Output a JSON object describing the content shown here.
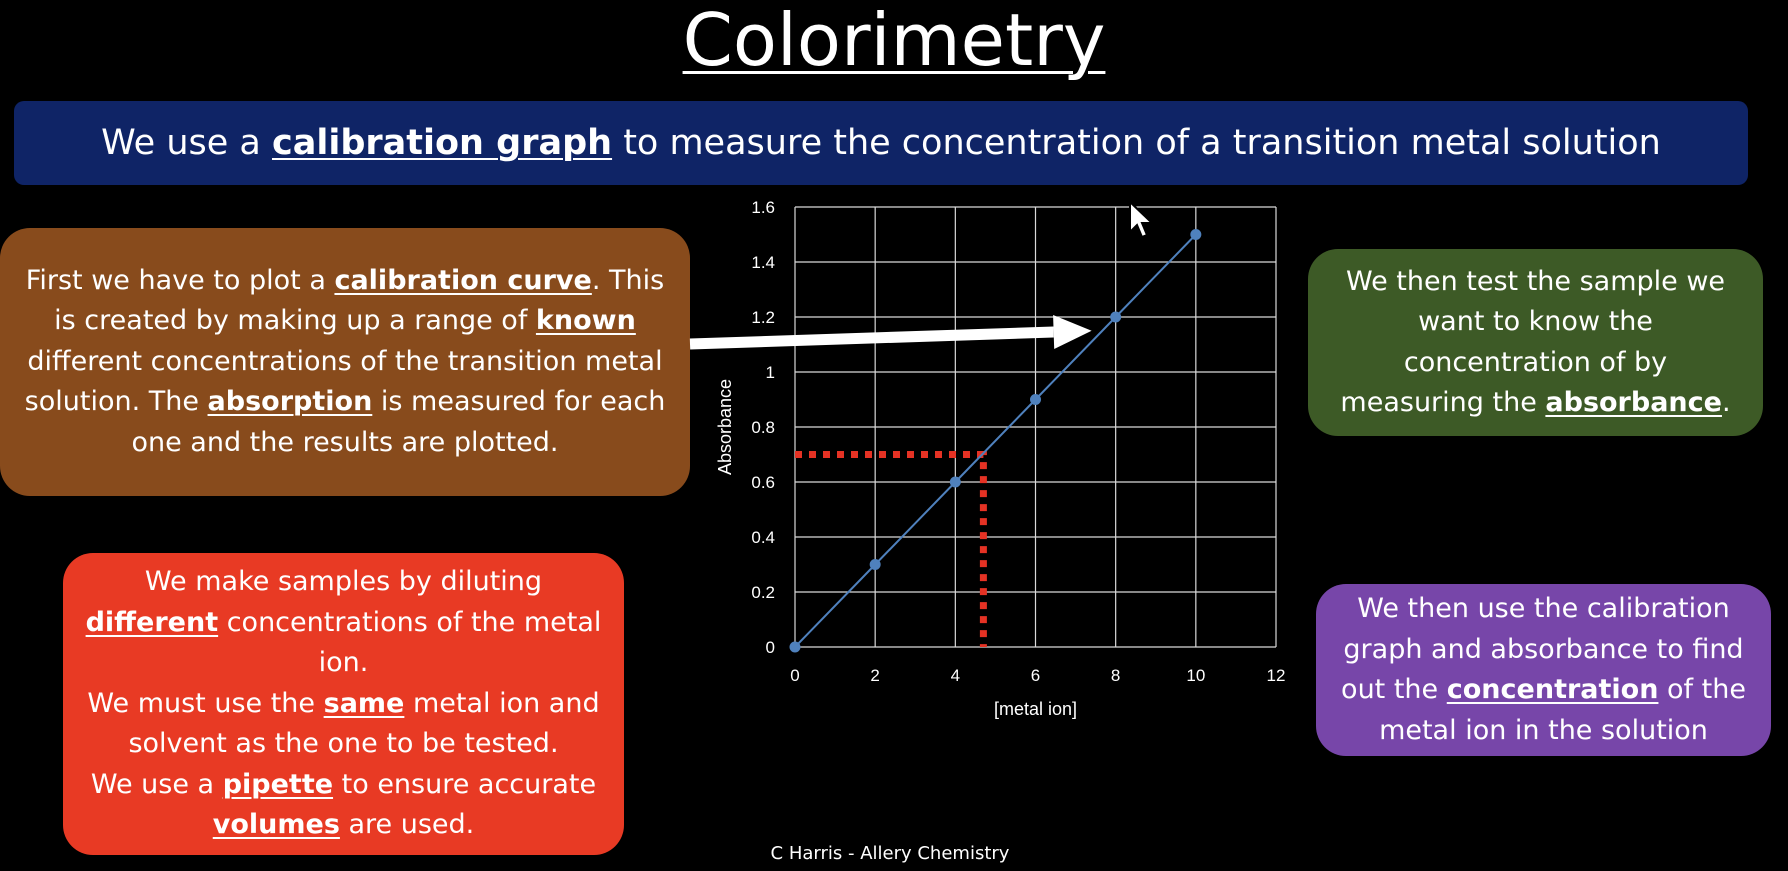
{
  "title": "Colorimetry",
  "banner": {
    "prefix": "We use a ",
    "term": "calibration graph",
    "suffix": " to measure the concentration of a transition metal solution"
  },
  "box_plot": {
    "t1": "First we have to plot a ",
    "k1": "calibration curve",
    "t2": ". This is created by making up a range of ",
    "k2": "known",
    "t3": " different concentrations of the transition metal solution. The ",
    "k3": "absorption",
    "t4": " is measured for each one and the results are plotted."
  },
  "box_samples": {
    "t1": "We make samples by diluting ",
    "k1": "different",
    "t2": " concentrations of the metal ion.",
    "t3": "We must use the ",
    "k2": "same",
    "t4": " metal ion and solvent as the one to be tested.",
    "t5": "We use a ",
    "k3": "pipette",
    "t6": " to ensure accurate ",
    "k4": "volumes",
    "t7": " are used."
  },
  "box_test": {
    "t1": "We then test the sample we want to know the concentration of by measuring the ",
    "k1": "absorbance",
    "t2": "."
  },
  "box_use": {
    "t1": "We then use the calibration graph and absorbance to find out the ",
    "k1": "concentration",
    "t2": " of the metal ion in the solution"
  },
  "credit": "C Harris - Allery Chemistry",
  "colors": {
    "banner": "#0f2466",
    "brown_box": "#884b1c",
    "red_box": "#e83a24",
    "green_box": "#3d5a26",
    "purple_box": "#7746a9",
    "series_line": "#4f81bd",
    "readout_line": "#e53224"
  },
  "chart_data": {
    "type": "scatter",
    "title": "",
    "xlabel": "[metal ion]",
    "ylabel": "Absorbance",
    "xlim": [
      0,
      12
    ],
    "ylim": [
      0,
      1.6
    ],
    "xticks": [
      0,
      2,
      4,
      6,
      8,
      10,
      12
    ],
    "yticks": [
      0,
      0.2,
      0.4,
      0.6,
      0.8,
      1,
      1.2,
      1.4,
      1.6
    ],
    "ytick_labels": [
      "0",
      "0.2",
      "0.4",
      "0.6",
      "0.8",
      "1",
      "1.2",
      "1.4",
      "1.6"
    ],
    "grid": true,
    "legend": "none",
    "series": [
      {
        "x": [
          0,
          2,
          4,
          6,
          8,
          10
        ],
        "y": [
          0,
          0.3,
          0.6,
          0.9,
          1.2,
          1.5
        ]
      }
    ],
    "readout": {
      "x": 4.7,
      "y": 0.7
    },
    "arrow_target": {
      "x": 7.4,
      "y": 1.15
    }
  }
}
